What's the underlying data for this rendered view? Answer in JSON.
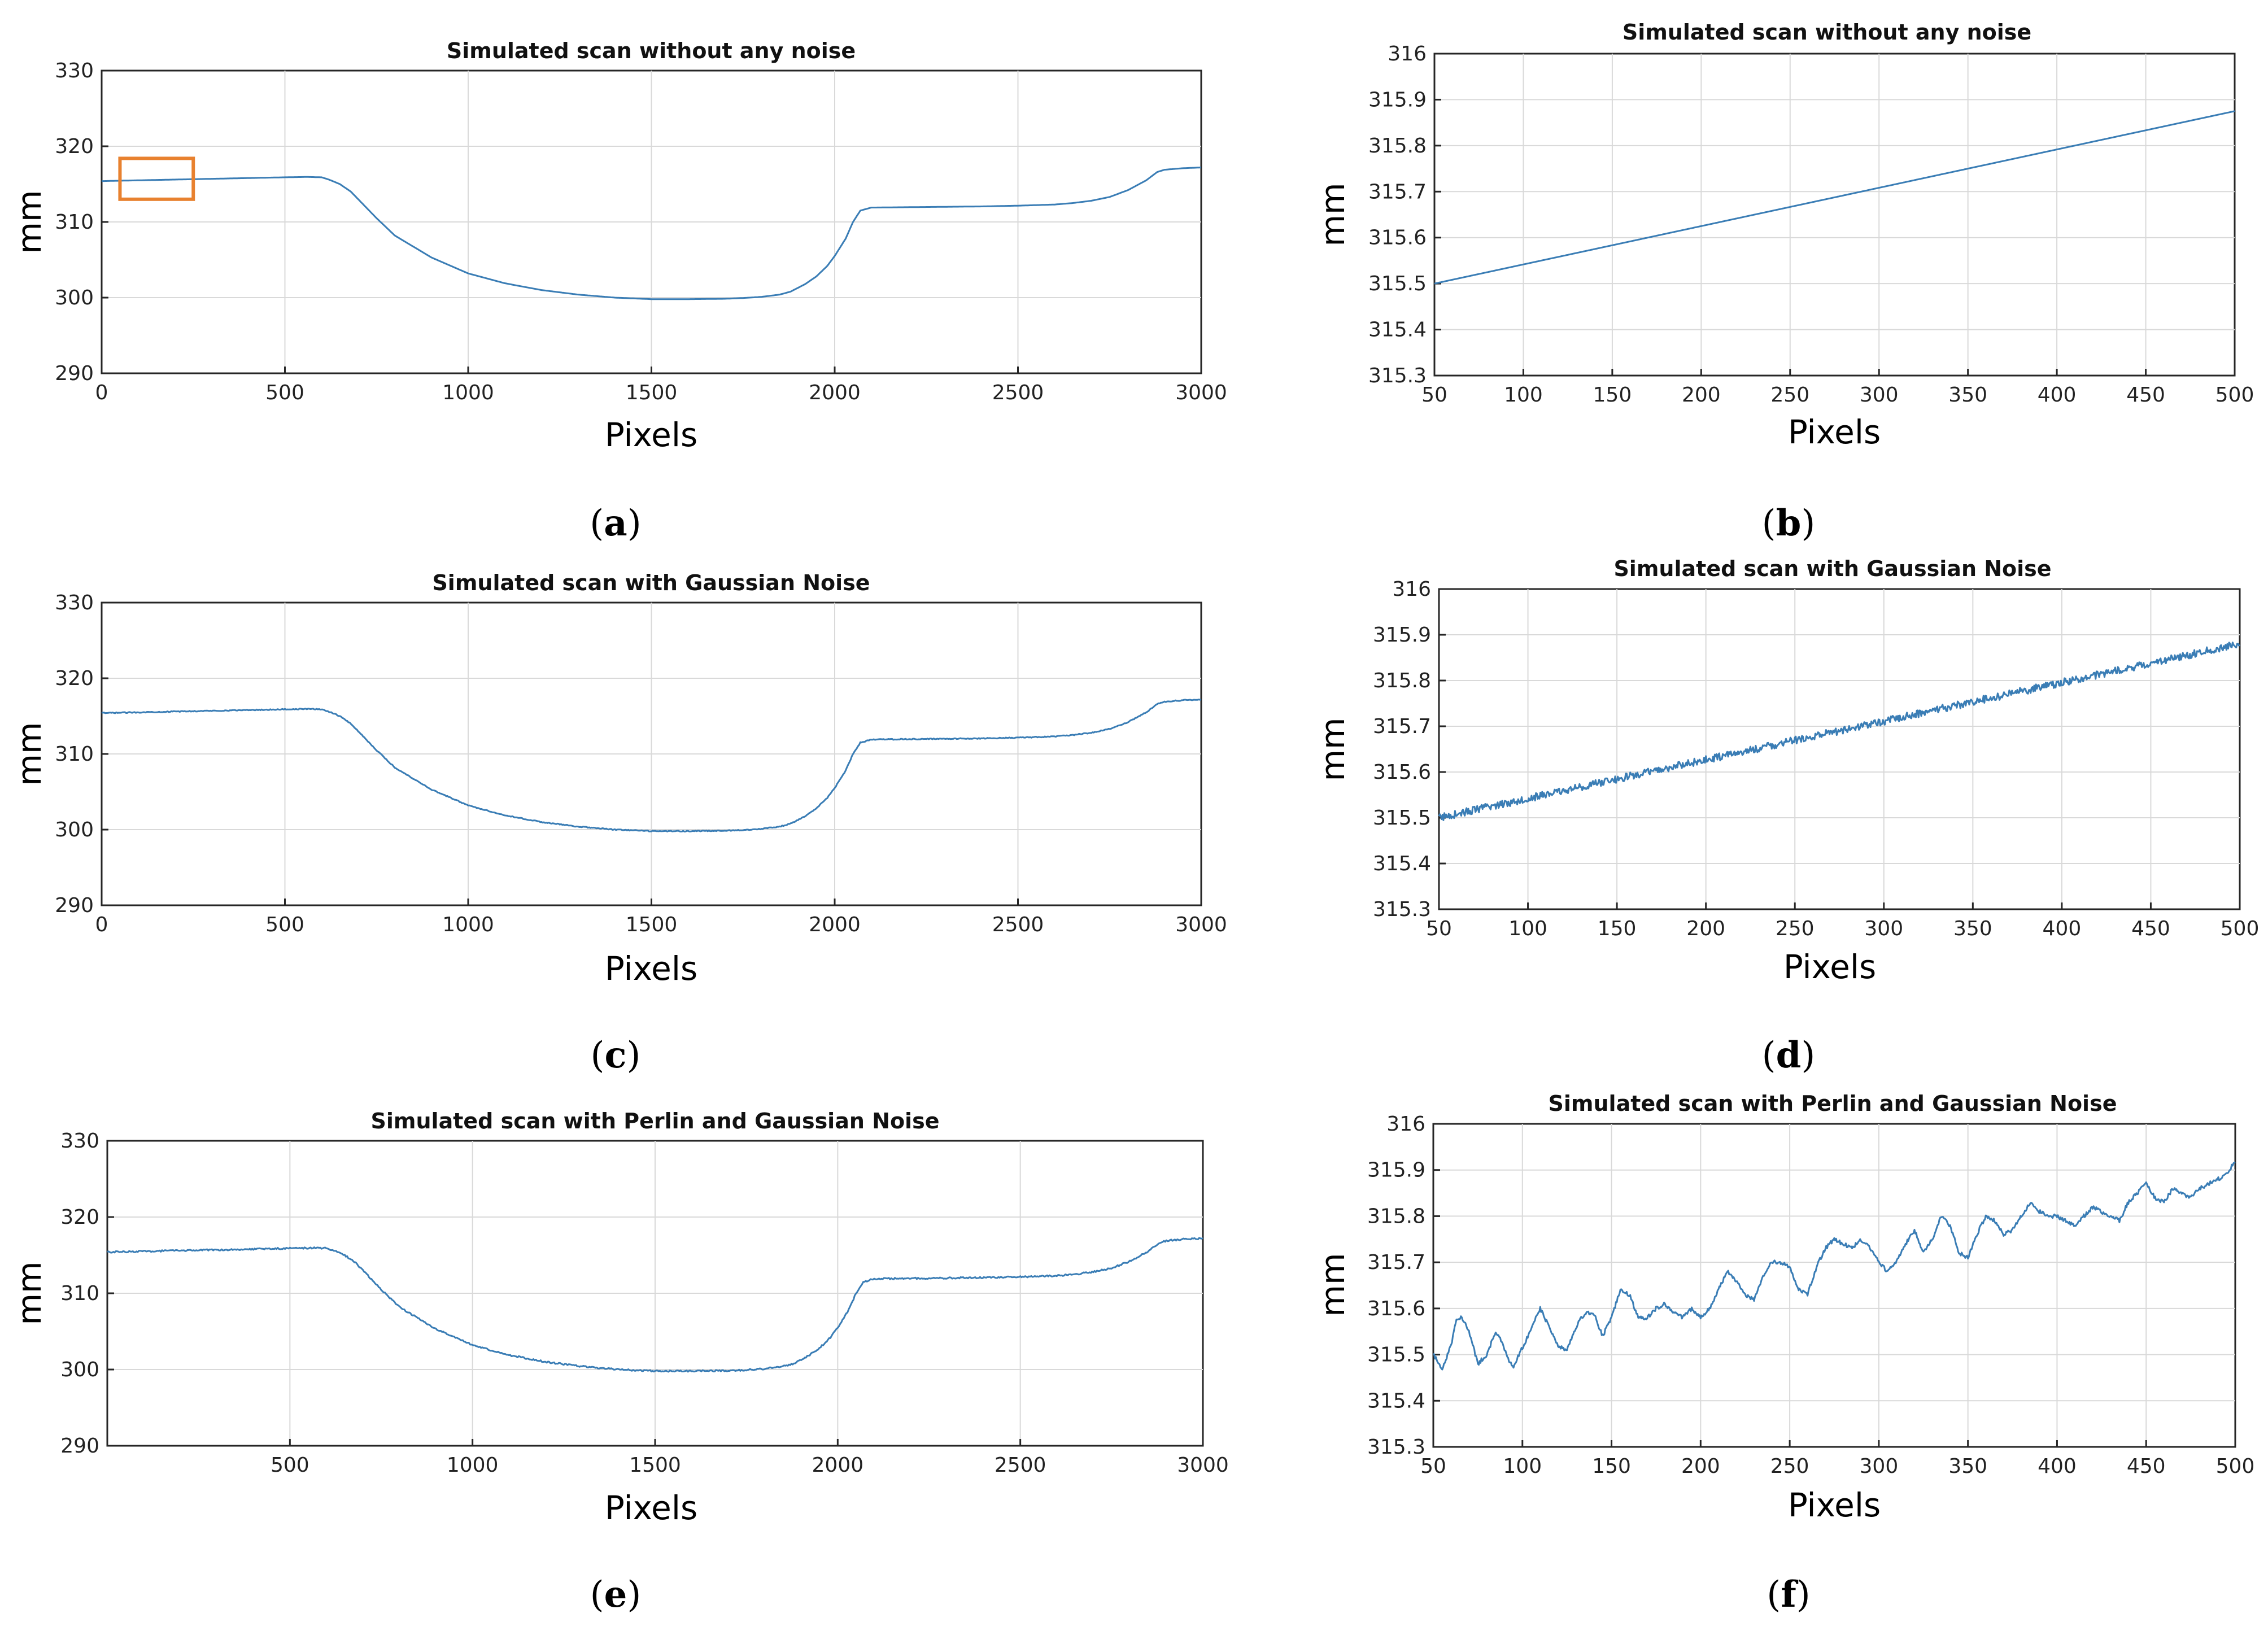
{
  "colors": {
    "series": "#3a7db5",
    "highlight": "#e8812f"
  },
  "chart_data": [
    {
      "type": "line",
      "panel_label": "a",
      "title": "Simulated scan without any noise",
      "xlabel": "Pixels",
      "ylabel": "mm",
      "xlim": [
        0,
        3000
      ],
      "ylim": [
        290,
        330
      ],
      "xticks": [
        0,
        500,
        1000,
        1500,
        2000,
        2500,
        3000
      ],
      "xtick_labels": [
        "0",
        "500",
        "1000",
        "1500",
        "2000",
        "2500",
        "3000"
      ],
      "yticks": [
        290,
        300,
        310,
        320,
        330
      ],
      "ytick_labels": [
        "290",
        "300",
        "310",
        "320",
        "330"
      ],
      "grid": true,
      "noise": "none",
      "highlight_box": {
        "x": [
          50,
          250
        ],
        "y": [
          313,
          318.4
        ]
      },
      "series": [
        {
          "name": "scan",
          "x": [
            0,
            100,
            200,
            300,
            400,
            500,
            560,
            600,
            620,
            650,
            680,
            700,
            750,
            800,
            900,
            1000,
            1100,
            1200,
            1300,
            1400,
            1500,
            1600,
            1700,
            1750,
            1800,
            1850,
            1880,
            1920,
            1950,
            1980,
            2000,
            2030,
            2050,
            2070,
            2100,
            2200,
            2300,
            2400,
            2500,
            2600,
            2650,
            2700,
            2750,
            2800,
            2850,
            2880,
            2900,
            2950,
            3000
          ],
          "y": [
            315.4,
            315.5,
            315.6,
            315.7,
            315.8,
            315.9,
            315.95,
            315.9,
            315.6,
            315,
            314,
            313,
            310.5,
            308.2,
            305.3,
            303.2,
            301.9,
            301,
            300.4,
            300,
            299.8,
            299.8,
            299.85,
            299.95,
            300.1,
            300.4,
            300.8,
            301.8,
            302.8,
            304.2,
            305.5,
            307.8,
            310,
            311.5,
            311.9,
            311.95,
            312,
            312.05,
            312.15,
            312.3,
            312.5,
            312.8,
            313.3,
            314.2,
            315.5,
            316.6,
            316.9,
            317.1,
            317.2
          ]
        }
      ]
    },
    {
      "type": "line",
      "panel_label": "b",
      "title": "Simulated scan without any noise",
      "xlabel": "Pixels",
      "ylabel": "mm",
      "xlim": [
        50,
        500
      ],
      "ylim": [
        315.3,
        316
      ],
      "xticks": [
        50,
        100,
        150,
        200,
        250,
        300,
        350,
        400,
        450,
        500
      ],
      "xtick_labels": [
        "50",
        "100",
        "150",
        "200",
        "250",
        "300",
        "350",
        "400",
        "450",
        "500"
      ],
      "yticks": [
        315.3,
        315.4,
        315.5,
        315.6,
        315.7,
        315.8,
        315.9,
        316
      ],
      "ytick_labels": [
        "315.3",
        "315.4",
        "315.5",
        "315.6",
        "315.7",
        "315.8",
        "315.9",
        "316"
      ],
      "grid": true,
      "noise": "none",
      "series": [
        {
          "name": "scan",
          "x": [
            50,
            500
          ],
          "y": [
            315.5,
            315.875
          ]
        }
      ]
    },
    {
      "type": "line",
      "panel_label": "c",
      "title": "Simulated scan with Gaussian Noise",
      "xlabel": "Pixels",
      "ylabel": "mm",
      "xlim": [
        0,
        3000
      ],
      "ylim": [
        290,
        330
      ],
      "xticks": [
        0,
        500,
        1000,
        1500,
        2000,
        2500,
        3000
      ],
      "xtick_labels": [
        "0",
        "500",
        "1000",
        "1500",
        "2000",
        "2500",
        "3000"
      ],
      "yticks": [
        290,
        300,
        310,
        320,
        330
      ],
      "ytick_labels": [
        "290",
        "300",
        "310",
        "320",
        "330"
      ],
      "grid": true,
      "noise": "gaussian",
      "series": [
        {
          "name": "scan",
          "x": [
            0,
            100,
            200,
            300,
            400,
            500,
            560,
            600,
            620,
            650,
            680,
            700,
            750,
            800,
            900,
            1000,
            1100,
            1200,
            1300,
            1400,
            1500,
            1600,
            1700,
            1750,
            1800,
            1850,
            1880,
            1920,
            1950,
            1980,
            2000,
            2030,
            2050,
            2070,
            2100,
            2200,
            2300,
            2400,
            2500,
            2600,
            2650,
            2700,
            2750,
            2800,
            2850,
            2880,
            2900,
            2950,
            3000
          ],
          "y": [
            315.4,
            315.5,
            315.6,
            315.7,
            315.8,
            315.9,
            315.95,
            315.9,
            315.6,
            315,
            314,
            313,
            310.5,
            308.2,
            305.3,
            303.2,
            301.9,
            301,
            300.4,
            300,
            299.8,
            299.8,
            299.85,
            299.95,
            300.1,
            300.4,
            300.8,
            301.8,
            302.8,
            304.2,
            305.5,
            307.8,
            310,
            311.5,
            311.9,
            311.95,
            312,
            312.05,
            312.15,
            312.3,
            312.5,
            312.8,
            313.3,
            314.2,
            315.5,
            316.6,
            316.9,
            317.1,
            317.2
          ]
        }
      ]
    },
    {
      "type": "line",
      "panel_label": "d",
      "title": "Simulated scan with Gaussian Noise",
      "xlabel": "Pixels",
      "ylabel": "mm",
      "xlim": [
        50,
        500
      ],
      "ylim": [
        315.3,
        316
      ],
      "xticks": [
        50,
        100,
        150,
        200,
        250,
        300,
        350,
        400,
        450,
        500
      ],
      "xtick_labels": [
        "50",
        "100",
        "150",
        "200",
        "250",
        "300",
        "350",
        "400",
        "450",
        "500"
      ],
      "yticks": [
        315.3,
        315.4,
        315.5,
        315.6,
        315.7,
        315.8,
        315.9,
        316
      ],
      "ytick_labels": [
        "315.3",
        "315.4",
        "315.5",
        "315.6",
        "315.7",
        "315.8",
        "315.9",
        "316"
      ],
      "grid": true,
      "noise": "gaussian",
      "series": [
        {
          "name": "scan",
          "x": [
            50,
            500
          ],
          "y": [
            315.5,
            315.88
          ]
        }
      ]
    },
    {
      "type": "line",
      "panel_label": "e",
      "title": "Simulated scan with Perlin and Gaussian Noise",
      "xlabel": "Pixels",
      "ylabel": "mm",
      "xlim": [
        0,
        3000
      ],
      "ylim": [
        290,
        330
      ],
      "xticks": [
        500,
        1000,
        1500,
        2000,
        2500,
        3000
      ],
      "xtick_labels": [
        "500",
        "1000",
        "1500",
        "2000",
        "2500",
        "3000"
      ],
      "yticks": [
        290,
        300,
        310,
        320,
        330
      ],
      "ytick_labels": [
        "290",
        "300",
        "310",
        "320",
        "330"
      ],
      "grid": true,
      "noise": "perlin+gaussian",
      "series": [
        {
          "name": "scan",
          "x": [
            0,
            100,
            200,
            300,
            400,
            500,
            560,
            600,
            620,
            650,
            680,
            700,
            750,
            800,
            900,
            1000,
            1100,
            1200,
            1300,
            1400,
            1500,
            1600,
            1700,
            1750,
            1800,
            1850,
            1880,
            1920,
            1950,
            1980,
            2000,
            2030,
            2050,
            2070,
            2100,
            2200,
            2300,
            2400,
            2500,
            2600,
            2650,
            2700,
            2750,
            2800,
            2850,
            2880,
            2900,
            2950,
            3000
          ],
          "y": [
            315.4,
            315.5,
            315.6,
            315.7,
            315.8,
            315.9,
            315.95,
            315.9,
            315.6,
            315,
            314,
            313,
            310.5,
            308.2,
            305.3,
            303.2,
            301.9,
            301,
            300.4,
            300,
            299.8,
            299.8,
            299.85,
            299.95,
            300.1,
            300.4,
            300.8,
            301.8,
            302.8,
            304.2,
            305.5,
            307.8,
            310,
            311.5,
            311.9,
            311.95,
            312,
            312.05,
            312.15,
            312.3,
            312.5,
            312.8,
            313.3,
            314.2,
            315.5,
            316.6,
            316.9,
            317.1,
            317.2
          ]
        }
      ]
    },
    {
      "type": "line",
      "panel_label": "f",
      "title": "Simulated scan with Perlin and Gaussian Noise",
      "xlabel": "Pixels",
      "ylabel": "mm",
      "xlim": [
        50,
        500
      ],
      "ylim": [
        315.3,
        316
      ],
      "xticks": [
        50,
        100,
        150,
        200,
        250,
        300,
        350,
        400,
        450,
        500
      ],
      "xtick_labels": [
        "50",
        "100",
        "150",
        "200",
        "250",
        "300",
        "350",
        "400",
        "450",
        "500"
      ],
      "yticks": [
        315.3,
        315.4,
        315.5,
        315.6,
        315.7,
        315.8,
        315.9,
        316
      ],
      "ytick_labels": [
        "315.3",
        "315.4",
        "315.5",
        "315.6",
        "315.7",
        "315.8",
        "315.9",
        "316"
      ],
      "grid": true,
      "noise": "perlin+gaussian",
      "series": [
        {
          "name": "scan",
          "x": [
            50,
            55,
            60,
            63,
            66,
            70,
            75,
            80,
            85,
            88,
            92,
            95,
            98,
            102,
            106,
            110,
            115,
            120,
            125,
            130,
            135,
            140,
            145,
            150,
            155,
            160,
            165,
            170,
            175,
            180,
            185,
            190,
            195,
            200,
            205,
            210,
            215,
            220,
            225,
            230,
            235,
            240,
            245,
            250,
            255,
            260,
            265,
            270,
            275,
            280,
            285,
            290,
            295,
            300,
            305,
            310,
            315,
            320,
            325,
            330,
            335,
            340,
            345,
            350,
            355,
            360,
            365,
            370,
            375,
            380,
            385,
            390,
            395,
            400,
            405,
            410,
            415,
            420,
            425,
            430,
            435,
            440,
            445,
            450,
            455,
            460,
            465,
            470,
            475,
            480,
            485,
            490,
            495,
            500
          ],
          "y": [
            315.5,
            315.47,
            315.52,
            315.58,
            315.58,
            315.55,
            315.48,
            315.5,
            315.55,
            315.53,
            315.49,
            315.47,
            315.5,
            315.53,
            315.57,
            315.6,
            315.56,
            315.52,
            315.51,
            315.56,
            315.59,
            315.59,
            315.54,
            315.58,
            315.64,
            315.63,
            315.58,
            315.58,
            315.6,
            315.61,
            315.59,
            315.58,
            315.6,
            315.58,
            315.6,
            315.64,
            315.68,
            315.66,
            315.63,
            315.62,
            315.67,
            315.7,
            315.7,
            315.69,
            315.64,
            315.63,
            315.69,
            315.73,
            315.75,
            315.74,
            315.73,
            315.75,
            315.73,
            315.7,
            315.68,
            315.7,
            315.74,
            315.77,
            315.72,
            315.75,
            315.8,
            315.78,
            315.72,
            315.71,
            315.76,
            315.8,
            315.79,
            315.76,
            315.77,
            315.8,
            315.83,
            315.81,
            315.8,
            315.8,
            315.79,
            315.78,
            315.8,
            315.82,
            315.81,
            315.8,
            315.79,
            315.83,
            315.85,
            315.87,
            315.84,
            315.83,
            315.86,
            315.85,
            315.84,
            315.86,
            315.87,
            315.88,
            315.89,
            315.92
          ]
        }
      ]
    }
  ]
}
